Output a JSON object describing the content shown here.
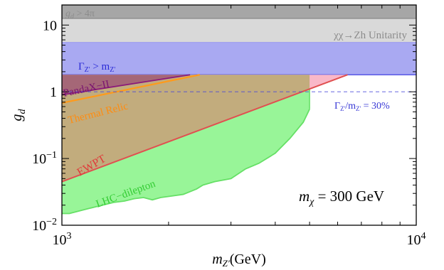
{
  "chart_data": {
    "type": "area",
    "title": "",
    "xlabel_main": "m",
    "xlabel_sub": "Z'",
    "xlabel_unit": "(GeV)",
    "ylabel_main": "g",
    "ylabel_sub": "d",
    "xscale": "log",
    "yscale": "log",
    "xlim": [
      1000,
      10000
    ],
    "ylim": [
      0.01,
      20
    ],
    "x_tick_labels": [
      {
        "value": 1000,
        "base": "10",
        "exp": "3"
      },
      {
        "value": 10000,
        "base": "10",
        "exp": "4"
      }
    ],
    "y_tick_labels": [
      {
        "value": 10,
        "base": "10",
        "exp": ""
      },
      {
        "value": 1,
        "base": "1",
        "exp": ""
      },
      {
        "value": 0.1,
        "base": "10",
        "exp": "−1"
      },
      {
        "value": 0.01,
        "base": "10",
        "exp": "−2"
      }
    ],
    "annotation": {
      "prefix": "m",
      "sub": "χ",
      "text": " = 300 GeV"
    },
    "bands": [
      {
        "name": "perturbativity",
        "label_main": "g",
        "label_sub": "d",
        "label_rest": " > 4π",
        "y_low": 12.57,
        "y_high": 20,
        "color": "#a6a6a6",
        "label_color": "#8c8c8c"
      },
      {
        "name": "unitarity",
        "label": "χχ→Zh Unitarity",
        "y_low": 5.5,
        "y_high": 12.57,
        "color": "#d9d9d9",
        "label_color": "#8c8c8c"
      },
      {
        "name": "width",
        "label_main": "Γ",
        "label_sub": "Z'",
        "label_rest": " > m",
        "label_sub2": "Z'",
        "y_low": 1.8,
        "y_high": 5.5,
        "color": "#a9a9f2",
        "label_color": "#2b2bd6"
      }
    ],
    "reference_line": {
      "name": "width-30pct",
      "y": 1.0,
      "label_main": "Γ",
      "label_sub": "Z'",
      "label_mid": "/m",
      "label_sub2": "Z'",
      "label_rest": " = 30%",
      "color": "#4a4ad9"
    },
    "series": [
      {
        "name": "LHC−dilepton",
        "color": "#66e066",
        "fill": "#98f598",
        "x": [
          1000,
          1050,
          1100,
          1200,
          1300,
          1400,
          1500,
          1600,
          1700,
          1800,
          1900,
          2000,
          2200,
          2400,
          2500,
          2700,
          3000,
          3300,
          3600,
          4000,
          4400,
          4800,
          5000
        ],
        "y": [
          0.015,
          0.015,
          0.016,
          0.018,
          0.02,
          0.022,
          0.023,
          0.025,
          0.026,
          0.024,
          0.026,
          0.027,
          0.029,
          0.035,
          0.04,
          0.045,
          0.05,
          0.07,
          0.085,
          0.12,
          0.2,
          0.35,
          0.55
        ]
      },
      {
        "name": "EWPT",
        "color": "#e05050",
        "x": [
          1000,
          6400
        ],
        "y": [
          0.045,
          1.8
        ]
      },
      {
        "name": "Thermal Relic",
        "color": "#ff9a1a",
        "x": [
          1000,
          2450
        ],
        "y": [
          0.68,
          1.8
        ]
      },
      {
        "name": "PandaX−II",
        "color": "#8b1a7a",
        "x": [
          1000,
          2300
        ],
        "y": [
          0.9,
          1.8
        ]
      }
    ],
    "excluded_region_colors": {
      "lhc_dilepton_excluded": "#c2ac7d",
      "ewpt_only": "#f9b8c8",
      "pandax": "#a05a75"
    }
  }
}
